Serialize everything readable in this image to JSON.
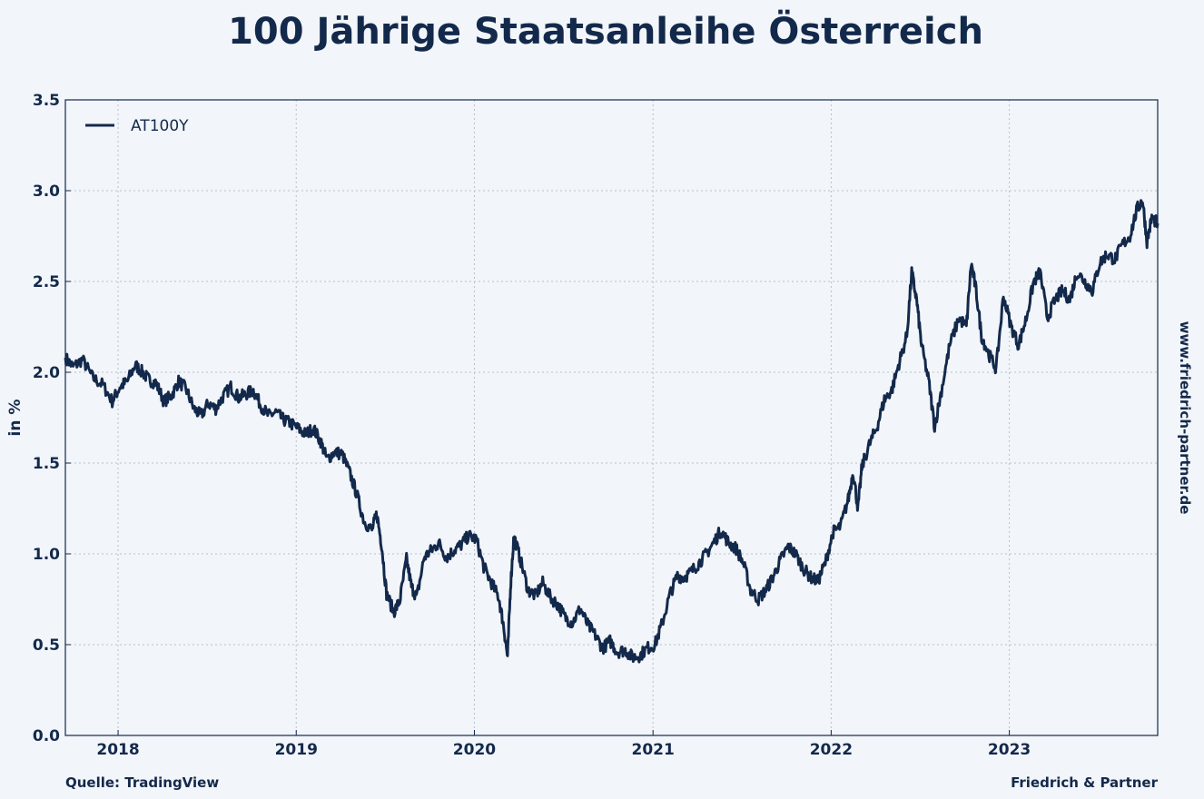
{
  "chart_data": {
    "type": "line",
    "title": "100 Jährige Staatsanleihe Österreich",
    "ylabel": "in %",
    "xlabel": "",
    "ylim": [
      0.0,
      3.5
    ],
    "xlim": [
      "2017-09-15",
      "2023-11-01"
    ],
    "y_ticks": [
      "0.0",
      "0.5",
      "1.0",
      "1.5",
      "2.0",
      "2.5",
      "3.0",
      "3.5"
    ],
    "x_ticks": [
      "2018",
      "2019",
      "2020",
      "2021",
      "2022",
      "2023"
    ],
    "grid": true,
    "legend_position": "top-left",
    "series": [
      {
        "name": "AT100Y",
        "color": "#13294b",
        "points": [
          [
            "2017-09-15",
            2.08
          ],
          [
            "2017-10-01",
            2.03
          ],
          [
            "2017-10-20",
            2.07
          ],
          [
            "2017-11-10",
            1.97
          ],
          [
            "2017-12-01",
            1.93
          ],
          [
            "2017-12-20",
            1.84
          ],
          [
            "2018-01-05",
            1.92
          ],
          [
            "2018-01-20",
            1.95
          ],
          [
            "2018-02-05",
            2.04
          ],
          [
            "2018-02-20",
            2.0
          ],
          [
            "2018-03-05",
            1.96
          ],
          [
            "2018-03-20",
            1.94
          ],
          [
            "2018-04-05",
            1.84
          ],
          [
            "2018-04-20",
            1.87
          ],
          [
            "2018-05-05",
            1.95
          ],
          [
            "2018-05-20",
            1.91
          ],
          [
            "2018-06-05",
            1.8
          ],
          [
            "2018-06-20",
            1.76
          ],
          [
            "2018-07-05",
            1.83
          ],
          [
            "2018-07-20",
            1.8
          ],
          [
            "2018-08-05",
            1.87
          ],
          [
            "2018-08-20",
            1.92
          ],
          [
            "2018-09-05",
            1.86
          ],
          [
            "2018-09-20",
            1.88
          ],
          [
            "2018-10-05",
            1.9
          ],
          [
            "2018-10-20",
            1.82
          ],
          [
            "2018-11-05",
            1.76
          ],
          [
            "2018-11-20",
            1.78
          ],
          [
            "2018-12-05",
            1.74
          ],
          [
            "2018-12-20",
            1.72
          ],
          [
            "2019-01-05",
            1.69
          ],
          [
            "2019-01-20",
            1.66
          ],
          [
            "2019-02-05",
            1.69
          ],
          [
            "2019-02-20",
            1.62
          ],
          [
            "2019-03-05",
            1.52
          ],
          [
            "2019-03-20",
            1.56
          ],
          [
            "2019-04-05",
            1.55
          ],
          [
            "2019-04-20",
            1.45
          ],
          [
            "2019-05-05",
            1.33
          ],
          [
            "2019-05-20",
            1.18
          ],
          [
            "2019-06-05",
            1.13
          ],
          [
            "2019-06-15",
            1.22
          ],
          [
            "2019-06-25",
            1.05
          ],
          [
            "2019-07-05",
            0.78
          ],
          [
            "2019-07-20",
            0.68
          ],
          [
            "2019-08-01",
            0.74
          ],
          [
            "2019-08-15",
            0.97
          ],
          [
            "2019-08-25",
            0.82
          ],
          [
            "2019-09-05",
            0.76
          ],
          [
            "2019-09-20",
            0.98
          ],
          [
            "2019-10-05",
            1.02
          ],
          [
            "2019-10-20",
            1.06
          ],
          [
            "2019-11-05",
            0.98
          ],
          [
            "2019-11-20",
            1.02
          ],
          [
            "2019-12-05",
            1.05
          ],
          [
            "2019-12-20",
            1.1
          ],
          [
            "2020-01-05",
            1.08
          ],
          [
            "2020-01-20",
            0.93
          ],
          [
            "2020-02-05",
            0.84
          ],
          [
            "2020-02-20",
            0.76
          ],
          [
            "2020-03-01",
            0.6
          ],
          [
            "2020-03-09",
            0.43
          ],
          [
            "2020-03-15",
            0.82
          ],
          [
            "2020-03-22",
            1.1
          ],
          [
            "2020-04-05",
            0.96
          ],
          [
            "2020-04-20",
            0.8
          ],
          [
            "2020-05-05",
            0.77
          ],
          [
            "2020-05-20",
            0.84
          ],
          [
            "2020-06-05",
            0.76
          ],
          [
            "2020-06-20",
            0.72
          ],
          [
            "2020-07-05",
            0.65
          ],
          [
            "2020-07-20",
            0.62
          ],
          [
            "2020-08-05",
            0.7
          ],
          [
            "2020-08-20",
            0.61
          ],
          [
            "2020-09-05",
            0.55
          ],
          [
            "2020-09-20",
            0.48
          ],
          [
            "2020-10-05",
            0.52
          ],
          [
            "2020-10-20",
            0.46
          ],
          [
            "2020-11-05",
            0.47
          ],
          [
            "2020-11-20",
            0.43
          ],
          [
            "2020-12-05",
            0.44
          ],
          [
            "2020-12-20",
            0.48
          ],
          [
            "2021-01-05",
            0.5
          ],
          [
            "2021-01-20",
            0.62
          ],
          [
            "2021-02-05",
            0.78
          ],
          [
            "2021-02-20",
            0.88
          ],
          [
            "2021-03-05",
            0.87
          ],
          [
            "2021-03-20",
            0.9
          ],
          [
            "2021-04-05",
            0.95
          ],
          [
            "2021-04-20",
            1.0
          ],
          [
            "2021-05-05",
            1.06
          ],
          [
            "2021-05-20",
            1.13
          ],
          [
            "2021-06-05",
            1.06
          ],
          [
            "2021-06-20",
            1.03
          ],
          [
            "2021-07-05",
            0.95
          ],
          [
            "2021-07-20",
            0.8
          ],
          [
            "2021-08-05",
            0.75
          ],
          [
            "2021-08-20",
            0.8
          ],
          [
            "2021-09-05",
            0.88
          ],
          [
            "2021-09-20",
            0.97
          ],
          [
            "2021-10-05",
            1.04
          ],
          [
            "2021-10-20",
            1.0
          ],
          [
            "2021-11-05",
            0.92
          ],
          [
            "2021-11-20",
            0.87
          ],
          [
            "2021-12-05",
            0.85
          ],
          [
            "2021-12-20",
            0.95
          ],
          [
            "2022-01-05",
            1.12
          ],
          [
            "2022-01-20",
            1.15
          ],
          [
            "2022-02-05",
            1.3
          ],
          [
            "2022-02-15",
            1.45
          ],
          [
            "2022-02-25",
            1.25
          ],
          [
            "2022-03-05",
            1.48
          ],
          [
            "2022-03-20",
            1.6
          ],
          [
            "2022-04-05",
            1.7
          ],
          [
            "2022-04-20",
            1.85
          ],
          [
            "2022-05-05",
            1.9
          ],
          [
            "2022-05-20",
            2.05
          ],
          [
            "2022-06-05",
            2.2
          ],
          [
            "2022-06-15",
            2.55
          ],
          [
            "2022-06-25",
            2.4
          ],
          [
            "2022-07-05",
            2.15
          ],
          [
            "2022-07-20",
            1.95
          ],
          [
            "2022-08-01",
            1.7
          ],
          [
            "2022-08-15",
            1.9
          ],
          [
            "2022-09-01",
            2.15
          ],
          [
            "2022-09-20",
            2.3
          ],
          [
            "2022-10-05",
            2.25
          ],
          [
            "2022-10-15",
            2.6
          ],
          [
            "2022-10-25",
            2.45
          ],
          [
            "2022-11-05",
            2.2
          ],
          [
            "2022-11-20",
            2.1
          ],
          [
            "2022-12-05",
            2.02
          ],
          [
            "2022-12-20",
            2.42
          ],
          [
            "2023-01-05",
            2.25
          ],
          [
            "2023-01-20",
            2.15
          ],
          [
            "2023-02-05",
            2.3
          ],
          [
            "2023-02-20",
            2.5
          ],
          [
            "2023-03-05",
            2.55
          ],
          [
            "2023-03-20",
            2.3
          ],
          [
            "2023-04-05",
            2.4
          ],
          [
            "2023-04-20",
            2.45
          ],
          [
            "2023-05-05",
            2.4
          ],
          [
            "2023-05-20",
            2.55
          ],
          [
            "2023-06-05",
            2.5
          ],
          [
            "2023-06-20",
            2.45
          ],
          [
            "2023-07-05",
            2.6
          ],
          [
            "2023-07-20",
            2.65
          ],
          [
            "2023-08-05",
            2.62
          ],
          [
            "2023-08-20",
            2.7
          ],
          [
            "2023-09-05",
            2.75
          ],
          [
            "2023-09-20",
            2.9
          ],
          [
            "2023-10-01",
            2.95
          ],
          [
            "2023-10-10",
            2.72
          ],
          [
            "2023-10-20",
            2.85
          ],
          [
            "2023-11-01",
            2.82
          ]
        ]
      }
    ]
  },
  "footer": {
    "source": "Quelle: TradingView",
    "brand": "Friedrich & Partner"
  },
  "side_label": "www.friedrich-partner.de"
}
